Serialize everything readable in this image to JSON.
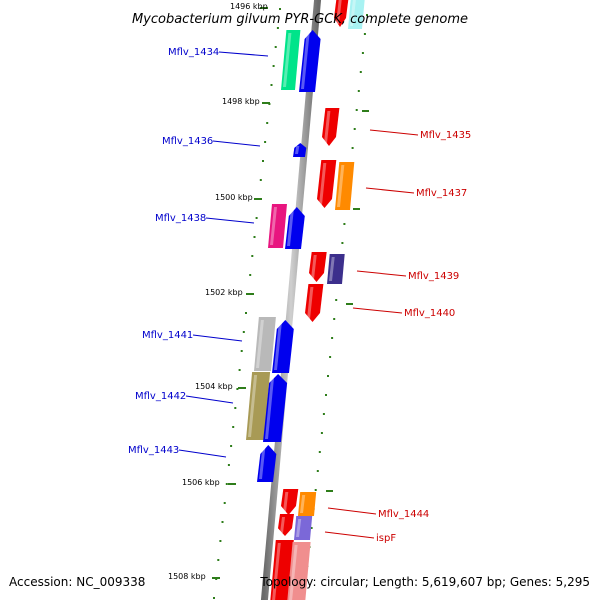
{
  "title": "Mycobacterium gilvum PYR-GCK, complete genome",
  "footer": {
    "accession": "Accession: NC_009338",
    "topology": "Topology: circular; Length: 5,619,607 bp; Genes: 5,295"
  },
  "kbp_labels": [
    "1496 kbp",
    "1498 kbp",
    "1500 kbp",
    "1502 kbp",
    "1504 kbp",
    "1506 kbp",
    "1508 kbp"
  ],
  "gene_labels": {
    "left": [
      "Mflv_1434",
      "Mflv_1436",
      "Mflv_1438",
      "Mflv_1441",
      "Mflv_1442",
      "Mflv_1443"
    ],
    "right": [
      "Mflv_1435",
      "Mflv_1437",
      "Mflv_1439",
      "Mflv_1440",
      "Mflv_1444",
      "ispF"
    ]
  },
  "colors": {
    "forward_label": "#0000cc",
    "reverse_label": "#cc0000",
    "blue": "#0000ee",
    "red": "#ee0000",
    "green": "#00e48a",
    "magenta": "#e8157f",
    "orange": "#ff8a00",
    "purple": "#3c2f8c",
    "silver": "#b9b9b9",
    "olive": "#a89a55",
    "lavender": "#7b68d8",
    "pink": "#f08e8e",
    "cyan": "#a8f2f2",
    "ticks": "#2e7d1a"
  }
}
